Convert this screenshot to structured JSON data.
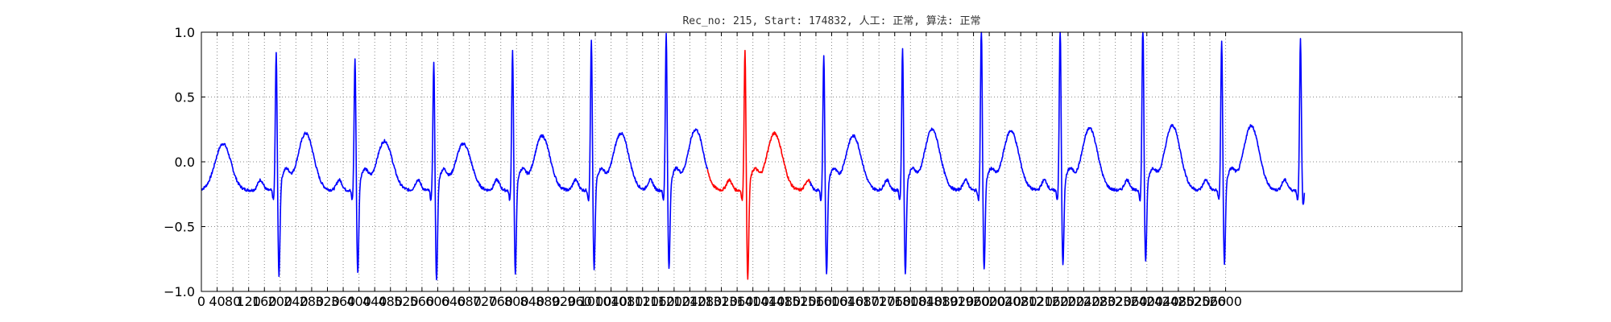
{
  "chart_data": {
    "type": "line",
    "title": "Rec_no: 215, Start: 174832, 人工: 正常, 算法: 正常",
    "xlabel": "",
    "ylabel": "",
    "xlim": [
      0,
      3200
    ],
    "ylim": [
      -1.0,
      1.0
    ],
    "grid": true,
    "grid_style": "dotted",
    "x_ticks": [
      0,
      40,
      80,
      120,
      160,
      200,
      240,
      280,
      320,
      360,
      400,
      440,
      480,
      520,
      560,
      600,
      640,
      680,
      720,
      760,
      800,
      840,
      880,
      920,
      960,
      1000,
      1040,
      1080,
      1120,
      1160,
      1200,
      1240,
      1280,
      1320,
      1360,
      1400,
      1440,
      1480,
      1520,
      1560,
      1600,
      1640,
      1680,
      1720,
      1760,
      1800,
      1840,
      1880,
      1920,
      1960,
      2000,
      2040,
      2080,
      2120,
      2160,
      2200,
      2240,
      2280,
      2320,
      2360,
      2400,
      2440,
      2480,
      2520,
      2560,
      2600
    ],
    "x_tick_labels": [
      "0",
      "40",
      "80",
      "120",
      "160",
      "200",
      "240",
      "280",
      "320",
      "360",
      "400",
      "440",
      "480",
      "520",
      "560",
      "600",
      "640",
      "680",
      "720",
      "760",
      "800",
      "840",
      "880",
      "920",
      "960",
      "1000",
      "1040",
      "1080",
      "1120",
      "1160",
      "1200",
      "1240",
      "1280",
      "1320",
      "1360",
      "1400",
      "1440",
      "1480",
      "1520",
      "1560",
      "1600",
      "1640",
      "1680",
      "1720",
      "1760",
      "1800",
      "1840",
      "1880",
      "1920",
      "1960",
      "2000",
      "2040",
      "2080",
      "2120",
      "2160",
      "2200",
      "2240",
      "2280",
      "2320",
      "2360",
      "2400",
      "2440",
      "2480",
      "2520",
      "2560",
      "2600"
    ],
    "y_ticks": [
      -1.0,
      -0.5,
      0.0,
      0.5,
      1.0
    ],
    "y_tick_labels": [
      "−1.0",
      "−0.5",
      "0.0",
      "0.5",
      "1.0"
    ],
    "x_end": 2800,
    "beats": [
      {
        "x": 190,
        "peak": 0.74,
        "trough": -0.92
      },
      {
        "x": 390,
        "peak": 0.7,
        "trough": -0.9
      },
      {
        "x": 590,
        "peak": 0.67,
        "trough": -0.96
      },
      {
        "x": 790,
        "peak": 0.76,
        "trough": -0.9
      },
      {
        "x": 990,
        "peak": 0.84,
        "trough": -0.87
      },
      {
        "x": 1180,
        "peak": 0.89,
        "trough": -0.87
      },
      {
        "x": 1380,
        "peak": 0.77,
        "trough": -0.94
      },
      {
        "x": 1580,
        "peak": 0.73,
        "trough": -0.9
      },
      {
        "x": 1780,
        "peak": 0.78,
        "trough": -0.9
      },
      {
        "x": 1980,
        "peak": 0.95,
        "trough": -0.87
      },
      {
        "x": 2180,
        "peak": 0.95,
        "trough": -0.84
      },
      {
        "x": 2390,
        "peak": 0.98,
        "trough": -0.82
      },
      {
        "x": 2590,
        "peak": 0.84,
        "trough": -0.83
      },
      {
        "x": 2790,
        "peak": 0.84,
        "trough": -0.38
      }
    ],
    "t_waves": [
      {
        "x": 55,
        "amp": 0.14
      },
      {
        "x": 265,
        "amp": 0.22
      },
      {
        "x": 465,
        "amp": 0.16
      },
      {
        "x": 665,
        "amp": 0.14
      },
      {
        "x": 865,
        "amp": 0.2
      },
      {
        "x": 1065,
        "amp": 0.22
      },
      {
        "x": 1255,
        "amp": 0.25
      },
      {
        "x": 1455,
        "amp": 0.22
      },
      {
        "x": 1655,
        "amp": 0.2
      },
      {
        "x": 1855,
        "amp": 0.25
      },
      {
        "x": 2055,
        "amp": 0.24
      },
      {
        "x": 2255,
        "amp": 0.26
      },
      {
        "x": 2465,
        "amp": 0.28
      },
      {
        "x": 2665,
        "amp": 0.28
      }
    ],
    "baseline": -0.22,
    "series": [
      {
        "color": "#0000ff",
        "segments": [
          [
            0,
            1285
          ],
          [
            1545,
            2800
          ]
        ]
      },
      {
        "color": "#ff0000",
        "segments": [
          [
            1285,
            1545
          ]
        ]
      }
    ]
  }
}
